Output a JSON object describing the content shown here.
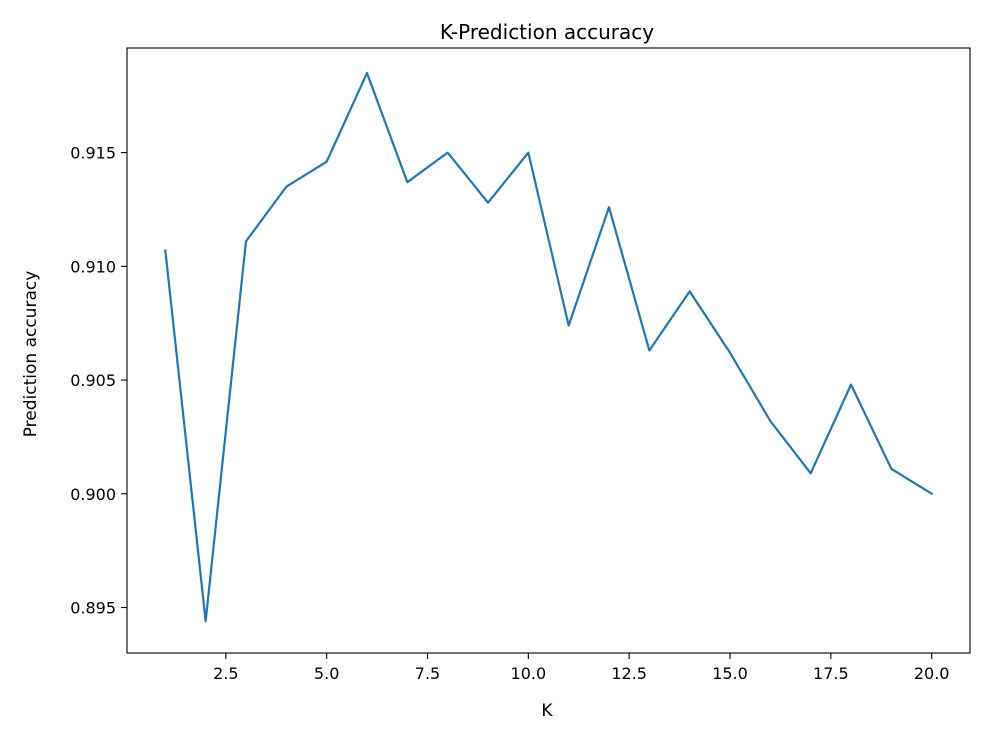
{
  "chart_data": {
    "type": "line",
    "title": "K-Prediction accuracy",
    "xlabel": "K",
    "ylabel": "Prediction accuracy",
    "xlim": [
      0.05,
      20.95
    ],
    "ylim": [
      0.893,
      0.9196
    ],
    "xticks": [
      2.5,
      5.0,
      7.5,
      10.0,
      12.5,
      15.0,
      17.5,
      20.0
    ],
    "xtick_labels": [
      "2.5",
      "5.0",
      "7.5",
      "10.0",
      "12.5",
      "15.0",
      "17.5",
      "20.0"
    ],
    "yticks": [
      0.895,
      0.9,
      0.905,
      0.91,
      0.915
    ],
    "ytick_labels": [
      "0.895",
      "0.900",
      "0.905",
      "0.910",
      "0.915"
    ],
    "grid": false,
    "series": [
      {
        "color": "#1f77b4",
        "x": [
          1,
          2,
          3,
          4,
          5,
          6,
          7,
          8,
          9,
          10,
          11,
          12,
          13,
          14,
          15,
          16,
          17,
          18,
          19,
          20
        ],
        "y": [
          0.9107,
          0.8944,
          0.9111,
          0.9135,
          0.9146,
          0.9185,
          0.9137,
          0.915,
          0.9128,
          0.915,
          0.9074,
          0.9126,
          0.9063,
          0.9089,
          0.9062,
          0.9032,
          0.9009,
          0.9048,
          0.9011,
          0.9
        ]
      }
    ]
  }
}
